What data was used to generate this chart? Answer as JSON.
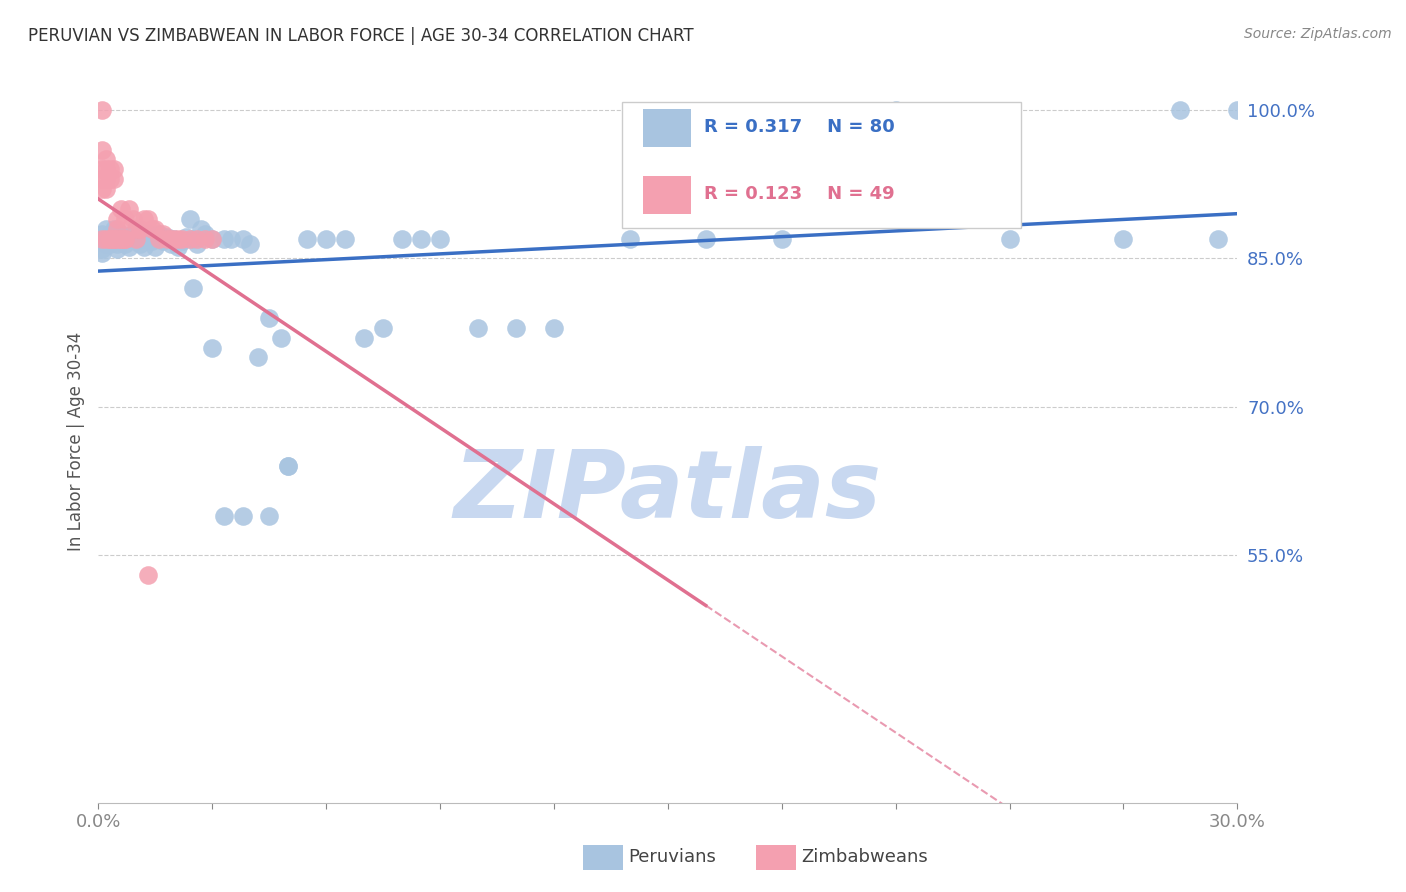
{
  "title": "PERUVIAN VS ZIMBABWEAN IN LABOR FORCE | AGE 30-34 CORRELATION CHART",
  "source": "Source: ZipAtlas.com",
  "ylabel": "In Labor Force | Age 30-34",
  "ytick_values": [
    1.0,
    0.85,
    0.7,
    0.55
  ],
  "ytick_labels": [
    "100.0%",
    "85.0%",
    "70.0%",
    "55.0%"
  ],
  "xmin": 0.0,
  "xmax": 0.3,
  "ymin": 0.3,
  "ymax": 1.03,
  "blue_label": "Peruvians",
  "pink_label": "Zimbabweans",
  "blue_R": 0.317,
  "blue_N": 80,
  "pink_R": 0.123,
  "pink_N": 49,
  "dot_color_blue": "#a8c4e0",
  "dot_color_pink": "#f4a0b0",
  "line_color_blue": "#3a6fc4",
  "line_color_pink": "#e07090",
  "watermark": "ZIPatlas",
  "watermark_color": "#c8d8f0",
  "title_color": "#333333",
  "axis_color": "#4472c4",
  "grid_color": "#cccccc",
  "blue_x": [
    0.001,
    0.001,
    0.001,
    0.001,
    0.002,
    0.002,
    0.002,
    0.003,
    0.003,
    0.003,
    0.004,
    0.004,
    0.005,
    0.005,
    0.005,
    0.006,
    0.006,
    0.007,
    0.007,
    0.008,
    0.008,
    0.009,
    0.01,
    0.01,
    0.011,
    0.011,
    0.012,
    0.012,
    0.013,
    0.014,
    0.015,
    0.015,
    0.016,
    0.017,
    0.018,
    0.019,
    0.02,
    0.021,
    0.022,
    0.023,
    0.024,
    0.025,
    0.026,
    0.027,
    0.028,
    0.03,
    0.033,
    0.035,
    0.038,
    0.04,
    0.042,
    0.045,
    0.048,
    0.05,
    0.055,
    0.06,
    0.065,
    0.07,
    0.075,
    0.08,
    0.085,
    0.09,
    0.1,
    0.11,
    0.12,
    0.14,
    0.16,
    0.18,
    0.21,
    0.24,
    0.27,
    0.285,
    0.295,
    0.3,
    0.038,
    0.045,
    0.05,
    0.033,
    0.03,
    0.025
  ],
  "blue_y": [
    0.875,
    0.87,
    0.86,
    0.855,
    0.88,
    0.87,
    0.865,
    0.875,
    0.87,
    0.865,
    0.88,
    0.875,
    0.87,
    0.865,
    0.86,
    0.875,
    0.868,
    0.872,
    0.865,
    0.87,
    0.862,
    0.875,
    0.88,
    0.868,
    0.875,
    0.865,
    0.87,
    0.862,
    0.875,
    0.868,
    0.87,
    0.862,
    0.875,
    0.868,
    0.872,
    0.865,
    0.87,
    0.862,
    0.868,
    0.872,
    0.89,
    0.87,
    0.865,
    0.88,
    0.875,
    0.87,
    0.87,
    0.87,
    0.87,
    0.865,
    0.75,
    0.79,
    0.77,
    0.64,
    0.87,
    0.87,
    0.87,
    0.77,
    0.78,
    0.87,
    0.87,
    0.87,
    0.78,
    0.78,
    0.78,
    0.87,
    0.87,
    0.87,
    1.0,
    0.87,
    0.87,
    1.0,
    0.87,
    1.0,
    0.59,
    0.59,
    0.64,
    0.59,
    0.76,
    0.82
  ],
  "pink_x": [
    0.001,
    0.001,
    0.001,
    0.001,
    0.001,
    0.001,
    0.002,
    0.002,
    0.002,
    0.002,
    0.003,
    0.003,
    0.003,
    0.004,
    0.004,
    0.004,
    0.005,
    0.005,
    0.006,
    0.006,
    0.007,
    0.007,
    0.008,
    0.009,
    0.01,
    0.01,
    0.011,
    0.012,
    0.013,
    0.014,
    0.015,
    0.016,
    0.017,
    0.018,
    0.019,
    0.02,
    0.021,
    0.022,
    0.024,
    0.026,
    0.028,
    0.03,
    0.002,
    0.003,
    0.004,
    0.005,
    0.006,
    0.007,
    0.013
  ],
  "pink_y": [
    1.0,
    0.96,
    0.94,
    0.93,
    0.92,
    0.87,
    0.95,
    0.94,
    0.93,
    0.92,
    0.94,
    0.93,
    0.87,
    0.94,
    0.93,
    0.87,
    0.89,
    0.88,
    0.9,
    0.87,
    0.89,
    0.87,
    0.9,
    0.89,
    0.88,
    0.87,
    0.88,
    0.89,
    0.89,
    0.88,
    0.88,
    0.87,
    0.875,
    0.87,
    0.87,
    0.87,
    0.87,
    0.87,
    0.87,
    0.87,
    0.87,
    0.87,
    0.87,
    0.87,
    0.87,
    0.87,
    0.87,
    0.87,
    0.53
  ]
}
